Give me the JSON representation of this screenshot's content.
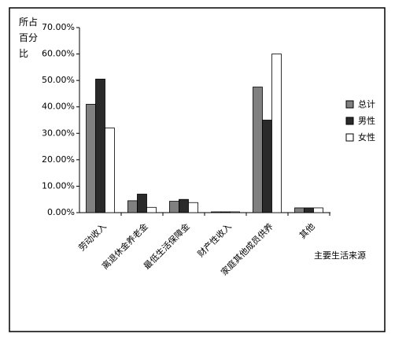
{
  "chart_data": {
    "type": "bar",
    "ylabel": "所占百分比",
    "xlabel": "主要生活来源",
    "categories": [
      "劳动收入",
      "离退休金养老金",
      "最低生活保障金",
      "财产性收入",
      "家庭其他成员供养",
      "其他"
    ],
    "series": [
      {
        "name": "总计",
        "color": "#808080",
        "values": [
          41,
          4.5,
          4.3,
          0.3,
          47.5,
          1.8
        ]
      },
      {
        "name": "男性",
        "color": "#2a2a2a",
        "values": [
          50.5,
          7,
          5,
          0.3,
          35,
          1.8
        ]
      },
      {
        "name": "女性",
        "color": "#ffffff",
        "values": [
          32,
          2,
          3.8,
          0.3,
          60,
          1.8
        ]
      }
    ],
    "ylim": [
      0,
      70
    ],
    "yticks": [
      {
        "value": 0,
        "label": "0.00%"
      },
      {
        "value": 10,
        "label": "10.00%"
      },
      {
        "value": 20,
        "label": "20.00%"
      },
      {
        "value": 30,
        "label": "30.00%"
      },
      {
        "value": 40,
        "label": "40.00%"
      },
      {
        "value": 50,
        "label": "50.00%"
      },
      {
        "value": 60,
        "label": "60.00%"
      },
      {
        "value": 70,
        "label": "70.00%"
      }
    ],
    "legend": "right"
  }
}
